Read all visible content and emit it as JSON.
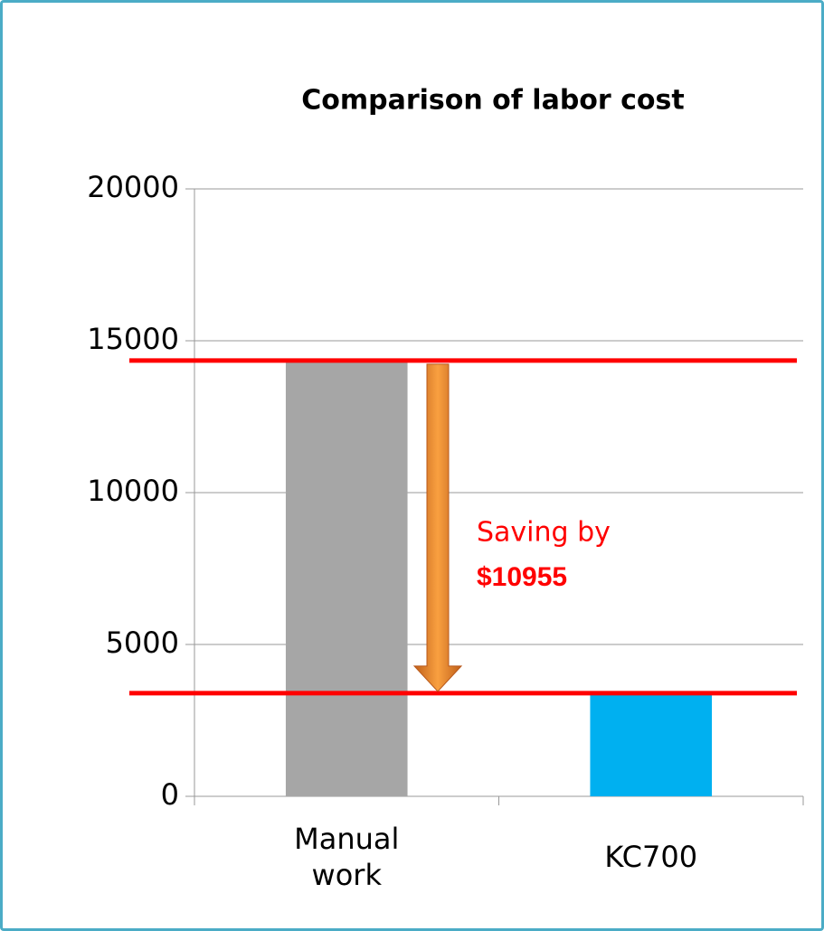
{
  "chart_data": {
    "type": "bar",
    "title": "Comparison of labor cost",
    "categories": [
      "Manual work",
      "KC700"
    ],
    "values": [
      14350,
      3395
    ],
    "colors": [
      "#a6a6a6",
      "#00b0f0"
    ],
    "ylim": [
      0,
      20000
    ],
    "yticks": [
      0,
      5000,
      10000,
      15000,
      20000
    ],
    "grid": true,
    "annotation": {
      "line1": "Saving by",
      "line2": "$10955"
    }
  }
}
